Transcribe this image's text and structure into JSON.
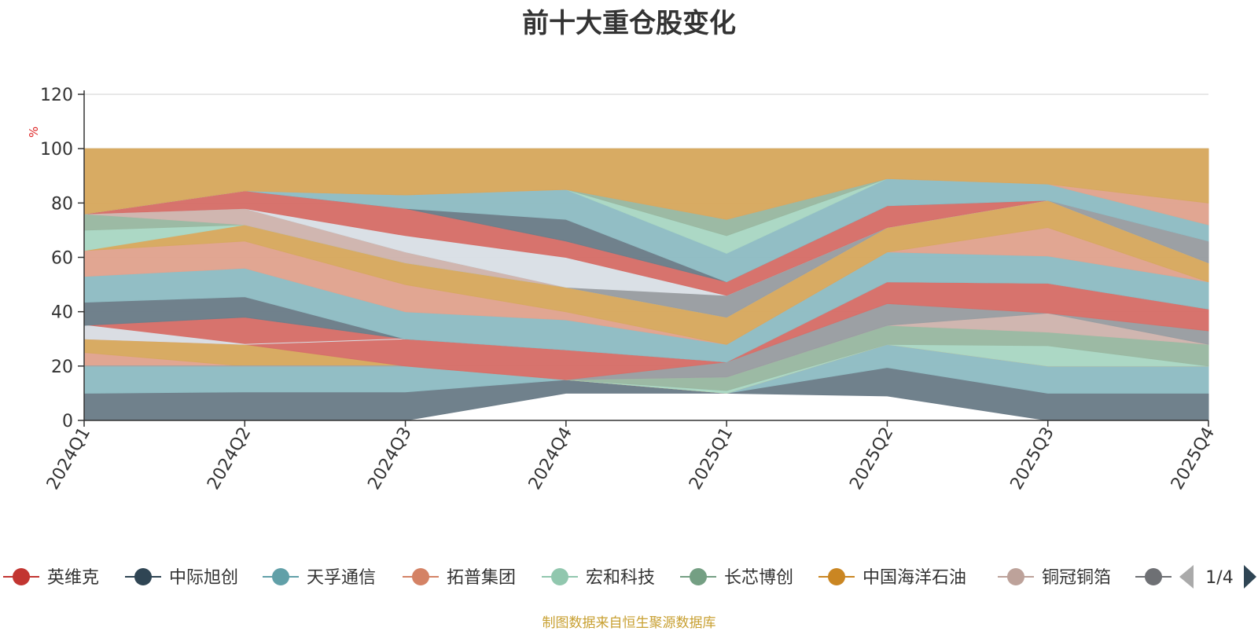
{
  "chart_data": {
    "type": "area",
    "title": "前十大重仓股变化",
    "ylabel": "%",
    "xlabel": "",
    "ylim": [
      0,
      120
    ],
    "yticks": [
      0,
      20,
      40,
      60,
      80,
      100,
      120
    ],
    "grid": true,
    "stacked": true,
    "legend_position": "bottom",
    "categories": [
      "2024Q1",
      "2024Q2",
      "2024Q3",
      "2024Q4",
      "2025Q1",
      "2025Q2",
      "2025Q3",
      "2025Q4"
    ],
    "series": [
      {
        "name": "英维克",
        "color": "#d6706a",
        "values": [
          0,
          0,
          0,
          10,
          10,
          9,
          0,
          0
        ]
      },
      {
        "name": "中际旭创",
        "color": "#6d7e8a",
        "values": [
          10,
          10.5,
          10.5,
          5,
          0,
          10.5,
          10,
          10
        ]
      },
      {
        "name": "天孚通信",
        "color": "#90bdc4",
        "values": [
          10,
          9.5,
          9.5,
          0,
          0,
          8.5,
          10,
          10
        ]
      },
      {
        "name": "拓普集团",
        "color": "#e0a490",
        "values": [
          5,
          0,
          0,
          0,
          0,
          0,
          0,
          0
        ]
      },
      {
        "name": "宏和科技",
        "color": "#aad7c4",
        "values": [
          0,
          0,
          0,
          0,
          1,
          0,
          7.5,
          0
        ]
      },
      {
        "name": "长芯博创",
        "color": "#9ab9a2",
        "values": [
          0,
          0,
          0,
          0,
          5,
          7,
          5,
          8
        ]
      },
      {
        "name": "中国海洋石油",
        "color": "#d7a960",
        "values": [
          5,
          8,
          0,
          0,
          0,
          0,
          0,
          0
        ]
      }
    ],
    "bands": [
      {
        "color": "#6d7e8a",
        "lower": [
          0,
          0,
          0,
          10,
          10,
          9,
          0,
          0
        ],
        "upper": [
          10,
          10.5,
          10.5,
          15,
          10,
          19.5,
          10,
          10
        ]
      },
      {
        "color": "#90bdc4",
        "lower": [
          10,
          10.5,
          10.5,
          15,
          10,
          19.5,
          10,
          10
        ],
        "upper": [
          20,
          20,
          20,
          15,
          10,
          28,
          20,
          20
        ]
      },
      {
        "color": "#e0a490",
        "lower": [
          20,
          20,
          20,
          15,
          10,
          28,
          20,
          20
        ],
        "upper": [
          25,
          20,
          20,
          15,
          10,
          28,
          20,
          20
        ]
      },
      {
        "color": "#d7a960",
        "lower": [
          25,
          20,
          20,
          15,
          10,
          28,
          20,
          20
        ],
        "upper": [
          30,
          28,
          20,
          15,
          10,
          28,
          20,
          20
        ]
      },
      {
        "color": "#aad7c4",
        "lower": [
          20,
          20,
          20,
          15,
          10,
          28,
          20,
          20
        ],
        "upper": [
          20,
          20,
          20,
          15,
          11,
          28,
          27.5,
          20
        ]
      },
      {
        "color": "#9ab9a2",
        "lower": [
          20,
          20,
          20,
          15,
          11,
          28,
          27.5,
          20
        ],
        "upper": [
          20,
          20,
          20,
          15,
          16,
          35,
          32.5,
          28
        ]
      },
      {
        "color": "#cfb5ae",
        "lower": [
          20,
          20,
          20,
          15,
          16,
          35,
          32.5,
          28
        ],
        "upper": [
          20,
          20,
          20,
          15,
          16,
          35,
          39.5,
          28
        ]
      },
      {
        "color": "#9a9ea2",
        "lower": [
          20,
          20,
          20,
          15,
          16,
          35,
          39.5,
          28
        ],
        "upper": [
          20,
          20,
          20,
          15,
          21.5,
          43,
          39.5,
          33
        ]
      },
      {
        "color": "#d6706a",
        "lower": [
          30,
          28,
          20,
          15,
          21.5,
          43,
          39.5,
          33
        ],
        "upper": [
          35,
          38,
          30,
          26,
          21.5,
          51,
          50.5,
          41
        ]
      },
      {
        "color": "#d9dfe5",
        "lower": [
          30,
          28,
          30,
          26,
          21.5,
          51,
          50.5,
          41
        ],
        "upper": [
          35,
          28,
          30,
          26,
          21.5,
          51,
          50.5,
          41
        ]
      },
      {
        "color": "#6d7e8a",
        "lower": [
          35,
          38,
          30,
          26,
          21.5,
          51,
          50.5,
          41
        ],
        "upper": [
          43.5,
          45.5,
          30,
          26,
          21.5,
          51,
          50.5,
          41
        ]
      },
      {
        "color": "#90bdc4",
        "lower": [
          43.5,
          45.5,
          30,
          26,
          21.5,
          51,
          50.5,
          41
        ],
        "upper": [
          53,
          56,
          40,
          37,
          28,
          62,
          60.5,
          51
        ]
      },
      {
        "color": "#e0a490",
        "lower": [
          53,
          56,
          40,
          37,
          28,
          62,
          60.5,
          51
        ],
        "upper": [
          62.5,
          66,
          50,
          40,
          28,
          62,
          71,
          51
        ]
      },
      {
        "color": "#d7a960",
        "lower": [
          62.5,
          66,
          50,
          40,
          28,
          62,
          71,
          51
        ],
        "upper": [
          62.5,
          72,
          58,
          49,
          38,
          71,
          81,
          58
        ]
      },
      {
        "color": "#aad7c4",
        "lower": [
          62.5,
          72,
          58,
          49,
          38,
          71,
          81,
          58
        ],
        "upper": [
          70,
          72,
          58,
          49,
          38,
          71,
          81,
          58
        ]
      },
      {
        "color": "#9ab9a2",
        "lower": [
          70,
          72,
          58,
          49,
          38,
          71,
          81,
          58
        ],
        "upper": [
          76,
          72,
          58,
          49,
          38,
          71,
          81,
          58
        ]
      },
      {
        "color": "#cfb5ae",
        "lower": [
          76,
          72,
          58,
          49,
          38,
          71,
          81,
          58
        ],
        "upper": [
          76,
          78,
          62,
          49,
          38,
          71,
          81,
          58
        ]
      },
      {
        "color": "#9a9ea2",
        "lower": [
          76,
          78,
          62,
          49,
          38,
          71,
          81,
          58
        ],
        "upper": [
          76,
          78,
          62,
          49,
          46,
          71,
          81,
          66
        ]
      },
      {
        "color": "#d9dfe5",
        "lower": [
          76,
          78,
          62,
          49,
          46,
          71,
          81,
          66
        ],
        "upper": [
          76,
          78,
          68,
          60,
          46,
          71,
          81,
          66
        ]
      },
      {
        "color": "#d6706a",
        "lower": [
          76,
          78,
          68,
          60,
          46,
          71,
          81,
          66
        ],
        "upper": [
          76,
          84.5,
          78,
          66,
          51,
          79,
          81,
          66
        ]
      },
      {
        "color": "#6d7e8a",
        "lower": [
          76,
          84.5,
          78,
          66,
          51,
          79,
          81,
          66
        ],
        "upper": [
          76,
          84.5,
          78,
          74,
          51,
          79,
          81,
          66
        ]
      },
      {
        "color": "#90bdc4",
        "lower": [
          76,
          84.5,
          78,
          74,
          51,
          79,
          81,
          66
        ],
        "upper": [
          76,
          84.5,
          83,
          85,
          61.5,
          89,
          87,
          72
        ]
      },
      {
        "color": "#aad7c4",
        "lower": [
          76,
          84.5,
          83,
          85,
          61.5,
          89,
          87,
          72
        ],
        "upper": [
          76,
          84.5,
          83,
          85,
          68,
          89,
          87,
          72
        ]
      },
      {
        "color": "#9ab9a2",
        "lower": [
          76,
          84.5,
          83,
          85,
          68,
          89,
          87,
          72
        ],
        "upper": [
          76,
          84.5,
          83,
          85,
          74,
          89,
          87,
          72
        ]
      },
      {
        "color": "#e0a490",
        "lower": [
          76,
          84.5,
          83,
          85,
          74,
          89,
          87,
          72
        ],
        "upper": [
          76,
          84.5,
          83,
          85,
          74,
          89,
          87,
          80
        ]
      },
      {
        "color": "#d7a960",
        "lower": [
          76,
          84.5,
          83,
          85,
          74,
          89,
          87,
          80
        ],
        "upper": [
          100,
          100,
          100,
          100,
          100,
          100,
          100,
          100
        ]
      }
    ]
  },
  "legend": {
    "items": [
      {
        "label": "英维克",
        "color": "#c23531"
      },
      {
        "label": "中际旭创",
        "color": "#2f4554"
      },
      {
        "label": "天孚通信",
        "color": "#61a0a8"
      },
      {
        "label": "拓普集团",
        "color": "#d48265"
      },
      {
        "label": "宏和科技",
        "color": "#91c7ae"
      },
      {
        "label": "长芯博创",
        "color": "#749f83"
      },
      {
        "label": "中国海洋石油",
        "color": "#ca8622"
      },
      {
        "label": "铜冠铜箔",
        "color": "#bda29a"
      },
      {
        "label": "",
        "color": "#6e7074"
      }
    ],
    "page_indicator": "1/4"
  },
  "source_note": "制图数据来自恒生聚源数据库",
  "colors": {
    "ylabel": "#dd2222",
    "source_note": "#c8a032",
    "pager_active": "#2f4554",
    "pager_inactive": "#aaaaaa"
  }
}
